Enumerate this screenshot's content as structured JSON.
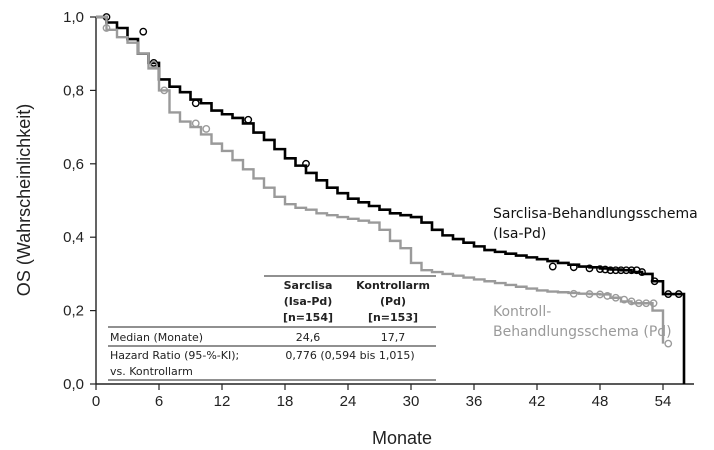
{
  "chart_data": {
    "type": "line",
    "ylabel": "OS (Wahrscheinlichkeit)",
    "xlabel": "Monate",
    "xlim": [
      0,
      57
    ],
    "ylim": [
      0,
      1.0
    ],
    "x_ticks": [
      0,
      6,
      12,
      18,
      24,
      30,
      36,
      42,
      48,
      54
    ],
    "x_tick_labels": [
      "0",
      "6",
      "12",
      "18",
      "24",
      "30",
      "36",
      "42",
      "48",
      "54"
    ],
    "y_ticks": [
      0,
      0.2,
      0.4,
      0.6,
      0.8,
      1.0
    ],
    "y_tick_labels": [
      "0,0",
      "0,2",
      "0,4",
      "0,6",
      "0,8",
      "1,0"
    ],
    "grid": false,
    "series": [
      {
        "name": "Sarclisa-Behandlungsschema (Isa-Pd)",
        "label_lines": [
          "Sarclisa-Behandlungsschema",
          "(Isa-Pd)"
        ],
        "color": "#000000",
        "x": [
          0,
          1,
          2,
          3,
          4,
          5,
          6,
          7,
          8,
          9,
          10,
          11,
          12,
          13,
          14,
          15,
          16,
          17,
          18,
          19,
          20,
          21,
          22,
          23,
          24,
          25,
          26,
          27,
          28,
          29,
          30,
          31,
          32,
          33,
          34,
          35,
          36,
          37,
          38,
          39,
          40,
          41,
          42,
          43,
          44,
          45,
          46,
          47,
          48,
          49,
          50,
          51,
          52,
          53,
          54,
          55,
          56
        ],
        "y": [
          1.0,
          0.985,
          0.97,
          0.94,
          0.9,
          0.875,
          0.83,
          0.81,
          0.795,
          0.775,
          0.765,
          0.745,
          0.735,
          0.725,
          0.71,
          0.685,
          0.665,
          0.64,
          0.615,
          0.595,
          0.575,
          0.555,
          0.535,
          0.52,
          0.505,
          0.495,
          0.485,
          0.475,
          0.465,
          0.46,
          0.455,
          0.44,
          0.42,
          0.405,
          0.395,
          0.385,
          0.375,
          0.365,
          0.36,
          0.355,
          0.35,
          0.345,
          0.34,
          0.335,
          0.33,
          0.325,
          0.32,
          0.318,
          0.315,
          0.312,
          0.31,
          0.305,
          0.3,
          0.28,
          0.245,
          0.245,
          0.0
        ],
        "censor_x": [
          1,
          4.5,
          5.5,
          9.5,
          14.5,
          20,
          43.5,
          45.5,
          47,
          48,
          48.5,
          49,
          49.5,
          50,
          50.5,
          51,
          51.5,
          52,
          53.2,
          54.5,
          55.5
        ],
        "censor_y": [
          1.0,
          0.96,
          0.875,
          0.765,
          0.72,
          0.6,
          0.32,
          0.318,
          0.315,
          0.313,
          0.312,
          0.31,
          0.31,
          0.31,
          0.31,
          0.31,
          0.31,
          0.305,
          0.28,
          0.245,
          0.245
        ]
      },
      {
        "name": "Kontroll-Behandlungsschema (Pd)",
        "label_lines": [
          "Kontroll-",
          "Behandlungsschema (Pd)"
        ],
        "color": "#9a9a9a",
        "x": [
          0,
          1,
          2,
          3,
          4,
          5,
          6,
          7,
          8,
          9,
          10,
          11,
          12,
          13,
          14,
          15,
          16,
          17,
          18,
          19,
          20,
          21,
          22,
          23,
          24,
          25,
          26,
          27,
          28,
          29,
          30,
          31,
          32,
          33,
          34,
          35,
          36,
          37,
          38,
          39,
          40,
          41,
          42,
          43,
          44,
          45,
          46,
          47,
          48,
          49,
          50,
          51,
          52,
          53,
          54
        ],
        "y": [
          1.0,
          0.965,
          0.945,
          0.93,
          0.9,
          0.86,
          0.8,
          0.74,
          0.715,
          0.7,
          0.68,
          0.655,
          0.635,
          0.61,
          0.585,
          0.56,
          0.535,
          0.51,
          0.49,
          0.48,
          0.475,
          0.465,
          0.46,
          0.455,
          0.45,
          0.445,
          0.44,
          0.42,
          0.39,
          0.37,
          0.33,
          0.31,
          0.305,
          0.3,
          0.295,
          0.29,
          0.285,
          0.28,
          0.275,
          0.27,
          0.265,
          0.26,
          0.255,
          0.252,
          0.25,
          0.248,
          0.246,
          0.245,
          0.244,
          0.235,
          0.225,
          0.22,
          0.22,
          0.2,
          0.11
        ],
        "censor_x": [
          1,
          5.5,
          6.5,
          9.5,
          10.5,
          45.5,
          47,
          48,
          48.7,
          49.5,
          50.3,
          51,
          51.7,
          52.4,
          53.1,
          54.5
        ],
        "censor_y": [
          0.97,
          0.87,
          0.8,
          0.71,
          0.695,
          0.246,
          0.245,
          0.244,
          0.24,
          0.235,
          0.23,
          0.225,
          0.22,
          0.22,
          0.22,
          0.11
        ]
      }
    ],
    "table": {
      "col_headers": [
        [
          "Sarclisa",
          "(Isa-Pd)",
          "[n=154]"
        ],
        [
          "Kontrollarm",
          "(Pd)",
          "[n=153]"
        ]
      ],
      "rows": [
        {
          "label": "Median (Monate)",
          "values": [
            "24,6",
            "17,7"
          ]
        },
        {
          "label_lines": [
            "Hazard Ratio (95-%-KI);",
            "vs. Kontrollarm"
          ],
          "value": "0,776 (0,594 bis 1,015)"
        }
      ]
    }
  }
}
